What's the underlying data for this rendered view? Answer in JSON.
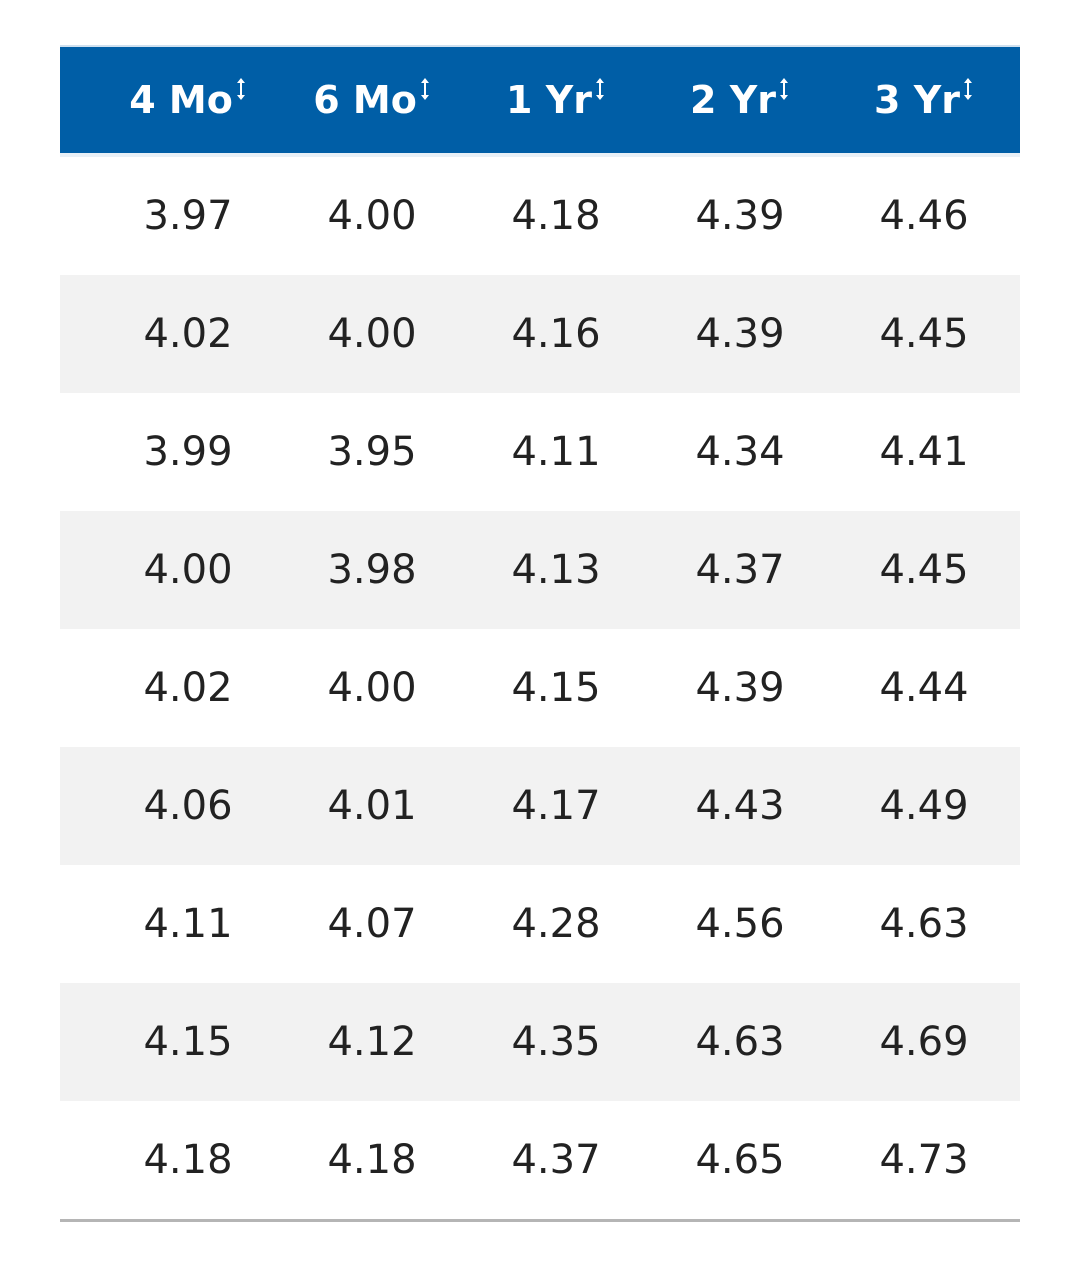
{
  "table": {
    "columns": [
      "4 Mo",
      "6 Mo",
      "1 Yr",
      "2 Yr",
      "3 Yr"
    ],
    "rows": [
      [
        "3.97",
        "4.00",
        "4.18",
        "4.39",
        "4.46"
      ],
      [
        "4.02",
        "4.00",
        "4.16",
        "4.39",
        "4.45"
      ],
      [
        "3.99",
        "3.95",
        "4.11",
        "4.34",
        "4.41"
      ],
      [
        "4.00",
        "3.98",
        "4.13",
        "4.37",
        "4.45"
      ],
      [
        "4.02",
        "4.00",
        "4.15",
        "4.39",
        "4.44"
      ],
      [
        "4.06",
        "4.01",
        "4.17",
        "4.43",
        "4.49"
      ],
      [
        "4.11",
        "4.07",
        "4.28",
        "4.56",
        "4.63"
      ],
      [
        "4.15",
        "4.12",
        "4.35",
        "4.63",
        "4.69"
      ],
      [
        "4.18",
        "4.18",
        "4.37",
        "4.65",
        "4.73"
      ]
    ]
  }
}
